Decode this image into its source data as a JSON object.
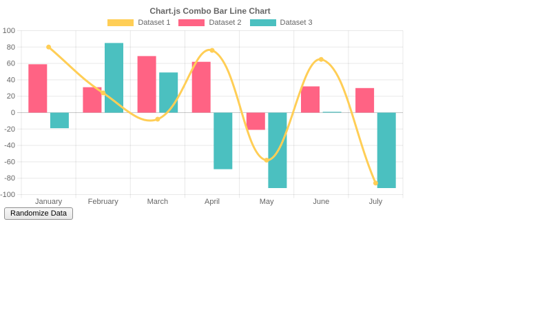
{
  "button": {
    "label": "Randomize Data"
  },
  "chart_data": {
    "type": "combo-bar-line",
    "title": "Chart.js Combo Bar Line Chart",
    "categories": [
      "January",
      "February",
      "March",
      "April",
      "May",
      "June",
      "July"
    ],
    "series": [
      {
        "name": "Dataset 1",
        "type": "line",
        "color": "#FFCE56",
        "values": [
          80,
          24,
          -8,
          76,
          -58,
          65,
          -86
        ]
      },
      {
        "name": "Dataset 2",
        "type": "bar",
        "color": "#FF6384",
        "values": [
          59,
          31,
          69,
          62,
          -21,
          32,
          30
        ]
      },
      {
        "name": "Dataset 3",
        "type": "bar",
        "color": "#4BC0C0",
        "values": [
          -19,
          85,
          49,
          -69,
          -92,
          1,
          -92
        ]
      }
    ],
    "xlabel": "",
    "ylabel": "",
    "ylim": [
      -100,
      100
    ],
    "ytick_step": 20,
    "grid": true,
    "legend_position": "top",
    "axis_text_color": "#666666",
    "grid_color": "rgba(0,0,0,0.09)",
    "zero_line_color": "rgba(0,0,0,0.22)",
    "line_tension": 0.4
  }
}
